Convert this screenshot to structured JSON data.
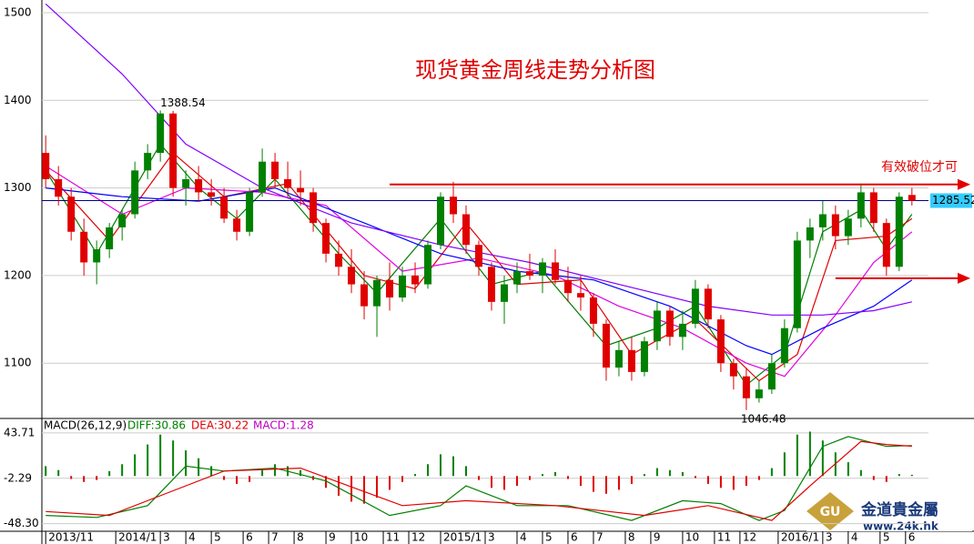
{
  "chart_data": [
    {
      "type": "candlestick",
      "title": "现货黄金周线走势分析图",
      "annotation": "有效破位才可",
      "up_color": "#008000",
      "down_color": "#e00000",
      "last_line_color": "#00008b",
      "label_box_color": "#33ccff",
      "xlim": [
        -0.3,
        69.3
      ],
      "ylim": [
        1039,
        1514.5
      ],
      "yticks": [
        1100,
        1200,
        1300,
        1400,
        1500
      ],
      "grid": true,
      "open": [
        1340,
        1310,
        1290,
        1250,
        1215,
        1230,
        1255,
        1270,
        1320,
        1340,
        1385,
        1300,
        1310,
        1295,
        1290,
        1265,
        1250,
        1295,
        1330,
        1310,
        1300,
        1295,
        1260,
        1225,
        1210,
        1190,
        1165,
        1195,
        1175,
        1200,
        1190,
        1235,
        1290,
        1270,
        1235,
        1210,
        1170,
        1190,
        1205,
        1200,
        1215,
        1195,
        1180,
        1175,
        1145,
        1095,
        1115,
        1090,
        1125,
        1160,
        1130,
        1145,
        1185,
        1150,
        1100,
        1085,
        1060,
        1070,
        1100,
        1140,
        1240,
        1255,
        1270,
        1245,
        1265,
        1295,
        1260,
        1210,
        1292
      ],
      "high": [
        1360,
        1325,
        1300,
        1265,
        1240,
        1260,
        1275,
        1330,
        1350,
        1388.54,
        1388,
        1320,
        1325,
        1310,
        1300,
        1275,
        1300,
        1345,
        1340,
        1330,
        1320,
        1300,
        1265,
        1240,
        1230,
        1205,
        1200,
        1215,
        1210,
        1215,
        1240,
        1295,
        1307,
        1280,
        1240,
        1215,
        1200,
        1215,
        1225,
        1220,
        1230,
        1210,
        1200,
        1180,
        1150,
        1125,
        1130,
        1130,
        1170,
        1165,
        1160,
        1195,
        1190,
        1155,
        1105,
        1095,
        1080,
        1110,
        1150,
        1250,
        1265,
        1285,
        1280,
        1275,
        1305,
        1300,
        1265,
        1295,
        1300
      ],
      "low": [
        1300,
        1280,
        1240,
        1200,
        1190,
        1220,
        1240,
        1265,
        1310,
        1330,
        1290,
        1280,
        1285,
        1280,
        1260,
        1240,
        1245,
        1290,
        1300,
        1290,
        1280,
        1250,
        1215,
        1200,
        1180,
        1150,
        1130,
        1160,
        1170,
        1180,
        1185,
        1230,
        1260,
        1225,
        1200,
        1160,
        1145,
        1180,
        1195,
        1180,
        1190,
        1170,
        1160,
        1130,
        1080,
        1085,
        1080,
        1085,
        1115,
        1120,
        1115,
        1140,
        1140,
        1090,
        1070,
        1046.48,
        1055,
        1065,
        1095,
        1135,
        1220,
        1240,
        1230,
        1235,
        1255,
        1250,
        1200,
        1205,
        1280
      ],
      "close": [
        1310,
        1290,
        1250,
        1215,
        1230,
        1255,
        1270,
        1320,
        1340,
        1385,
        1300,
        1310,
        1295,
        1290,
        1265,
        1250,
        1295,
        1330,
        1310,
        1300,
        1295,
        1260,
        1225,
        1210,
        1190,
        1165,
        1195,
        1175,
        1200,
        1190,
        1235,
        1290,
        1270,
        1235,
        1210,
        1170,
        1190,
        1205,
        1200,
        1215,
        1195,
        1180,
        1175,
        1145,
        1095,
        1115,
        1090,
        1125,
        1160,
        1130,
        1145,
        1185,
        1150,
        1100,
        1085,
        1060,
        1070,
        1100,
        1140,
        1240,
        1255,
        1270,
        1245,
        1265,
        1295,
        1260,
        1210,
        1290,
        1285.52
      ],
      "ma_lines": [
        {
          "color": "#008000",
          "x": [
            0,
            4,
            9,
            12,
            15,
            18,
            23,
            26,
            31,
            35,
            39,
            44,
            48,
            51,
            55,
            58,
            61,
            64,
            66,
            68
          ],
          "values": [
            1320,
            1225,
            1350,
            1300,
            1265,
            1310,
            1225,
            1180,
            1265,
            1190,
            1205,
            1120,
            1140,
            1165,
            1075,
            1110,
            1250,
            1275,
            1230,
            1270
          ]
        },
        {
          "color": "#e00000",
          "x": [
            0,
            5,
            10,
            14,
            19,
            25,
            29,
            33,
            37,
            42,
            46,
            51,
            56,
            59,
            62,
            66,
            68
          ],
          "values": [
            1320,
            1240,
            1340,
            1290,
            1305,
            1200,
            1185,
            1260,
            1190,
            1195,
            1110,
            1150,
            1080,
            1110,
            1240,
            1245,
            1265
          ]
        },
        {
          "color": "#e000e0",
          "x": [
            0,
            6,
            11,
            17,
            22,
            28,
            34,
            40,
            45,
            50,
            55,
            58,
            62,
            65,
            68
          ],
          "values": [
            1325,
            1270,
            1300,
            1295,
            1280,
            1205,
            1220,
            1200,
            1165,
            1140,
            1100,
            1085,
            1155,
            1215,
            1250
          ]
        },
        {
          "color": "#0000ff",
          "x": [
            0,
            6,
            12,
            18,
            25,
            31,
            37,
            43,
            49,
            55,
            57,
            61,
            65,
            68
          ],
          "values": [
            1300,
            1290,
            1285,
            1300,
            1260,
            1225,
            1205,
            1195,
            1165,
            1120,
            1110,
            1140,
            1165,
            1195
          ]
        },
        {
          "color": "#8000ff",
          "x": [
            0,
            6,
            11,
            17,
            24,
            31,
            38,
            45,
            52,
            57,
            61,
            65,
            68
          ],
          "values": [
            1510,
            1430,
            1350,
            1300,
            1260,
            1235,
            1215,
            1190,
            1165,
            1155,
            1155,
            1160,
            1170
          ]
        }
      ],
      "arrows": [
        {
          "x": 27,
          "value": 1304,
          "color": "#e00000"
        },
        {
          "x": 62,
          "value": 1197,
          "color": "#e00000"
        }
      ]
    },
    {
      "type": "macd",
      "title": "MACD(26,12,9)",
      "xlim": [
        -0.3,
        69.3
      ],
      "ylim": [
        -56,
        56.5
      ],
      "yticks": [
        43.71,
        -2.29,
        {
          "value": -48.3,
          "label": "-48.30"
        }
      ],
      "xticks": [
        {
          "value": 0,
          "label": "2013/11"
        },
        {
          "value": 5.5,
          "label": "2014/1"
        },
        {
          "value": 9,
          "label": "3"
        },
        {
          "value": 11,
          "label": "4"
        },
        {
          "value": 13,
          "label": "5"
        },
        {
          "value": 15.5,
          "label": "6"
        },
        {
          "value": 17.5,
          "label": "7"
        },
        {
          "value": 19.5,
          "label": "8"
        },
        {
          "value": 22,
          "label": "9"
        },
        {
          "value": 24,
          "label": "10"
        },
        {
          "value": 26.5,
          "label": "11"
        },
        {
          "value": 28.5,
          "label": "12"
        },
        {
          "value": 31,
          "label": "2015/1"
        },
        {
          "value": 34.5,
          "label": "3"
        },
        {
          "value": 37,
          "label": "4"
        },
        {
          "value": 39,
          "label": "5"
        },
        {
          "value": 41,
          "label": "6"
        },
        {
          "value": 43,
          "label": "7"
        },
        {
          "value": 45.5,
          "label": "8"
        },
        {
          "value": 47.5,
          "label": "9"
        },
        {
          "value": 50,
          "label": "10"
        },
        {
          "value": 52.5,
          "label": "11"
        },
        {
          "value": 54.5,
          "label": "12"
        },
        {
          "value": 57.5,
          "label": "2016/1"
        },
        {
          "value": 61,
          "label": "3"
        },
        {
          "value": 63,
          "label": "4"
        },
        {
          "value": 65.5,
          "label": "5"
        },
        {
          "value": 67.5,
          "label": "6"
        }
      ],
      "series": [
        {
          "name": "DIFF:30.86",
          "color": "#008000",
          "x": [
            0,
            4,
            8,
            11,
            14,
            18,
            22,
            27,
            31,
            33,
            37,
            41,
            46,
            50,
            53,
            56,
            58,
            61,
            63,
            66,
            68
          ],
          "values": [
            -40,
            -42,
            -30,
            10,
            5,
            8,
            -5,
            -40,
            -30,
            -10,
            -30,
            -30,
            -45,
            -25,
            -28,
            -45,
            -35,
            30,
            40,
            30,
            30.86
          ]
        },
        {
          "name": "DEA:30.22",
          "color": "#e00000",
          "x": [
            0,
            5,
            10,
            14,
            20,
            28,
            33,
            40,
            47,
            52,
            57,
            60,
            64,
            66,
            68
          ],
          "values": [
            -36,
            -40,
            -15,
            5,
            8,
            -30,
            -25,
            -30,
            -40,
            -30,
            -45,
            -10,
            35,
            32,
            30.22
          ]
        },
        {
          "name": "MACD:1.28",
          "color": "#c000c0",
          "up_color": "#008000",
          "down_color": "#e00000",
          "values": [
            10,
            6,
            -3,
            -6,
            -4,
            5,
            12,
            22,
            32,
            42,
            36,
            26,
            18,
            10,
            -4,
            -8,
            -6,
            6,
            12,
            10,
            6,
            -4,
            -12,
            -20,
            -26,
            -28,
            -22,
            -14,
            -6,
            2,
            12,
            22,
            20,
            10,
            -4,
            -12,
            -14,
            -10,
            -4,
            2,
            4,
            -3,
            -10,
            -16,
            -18,
            -14,
            -8,
            2,
            8,
            6,
            4,
            -2,
            -8,
            -12,
            -14,
            -10,
            -4,
            8,
            24,
            42,
            45,
            36,
            24,
            14,
            6,
            -4,
            -6,
            2,
            1.28
          ]
        }
      ]
    }
  ],
  "logo": {
    "name": "金道貴金屬",
    "url": "www.24k.hk"
  }
}
